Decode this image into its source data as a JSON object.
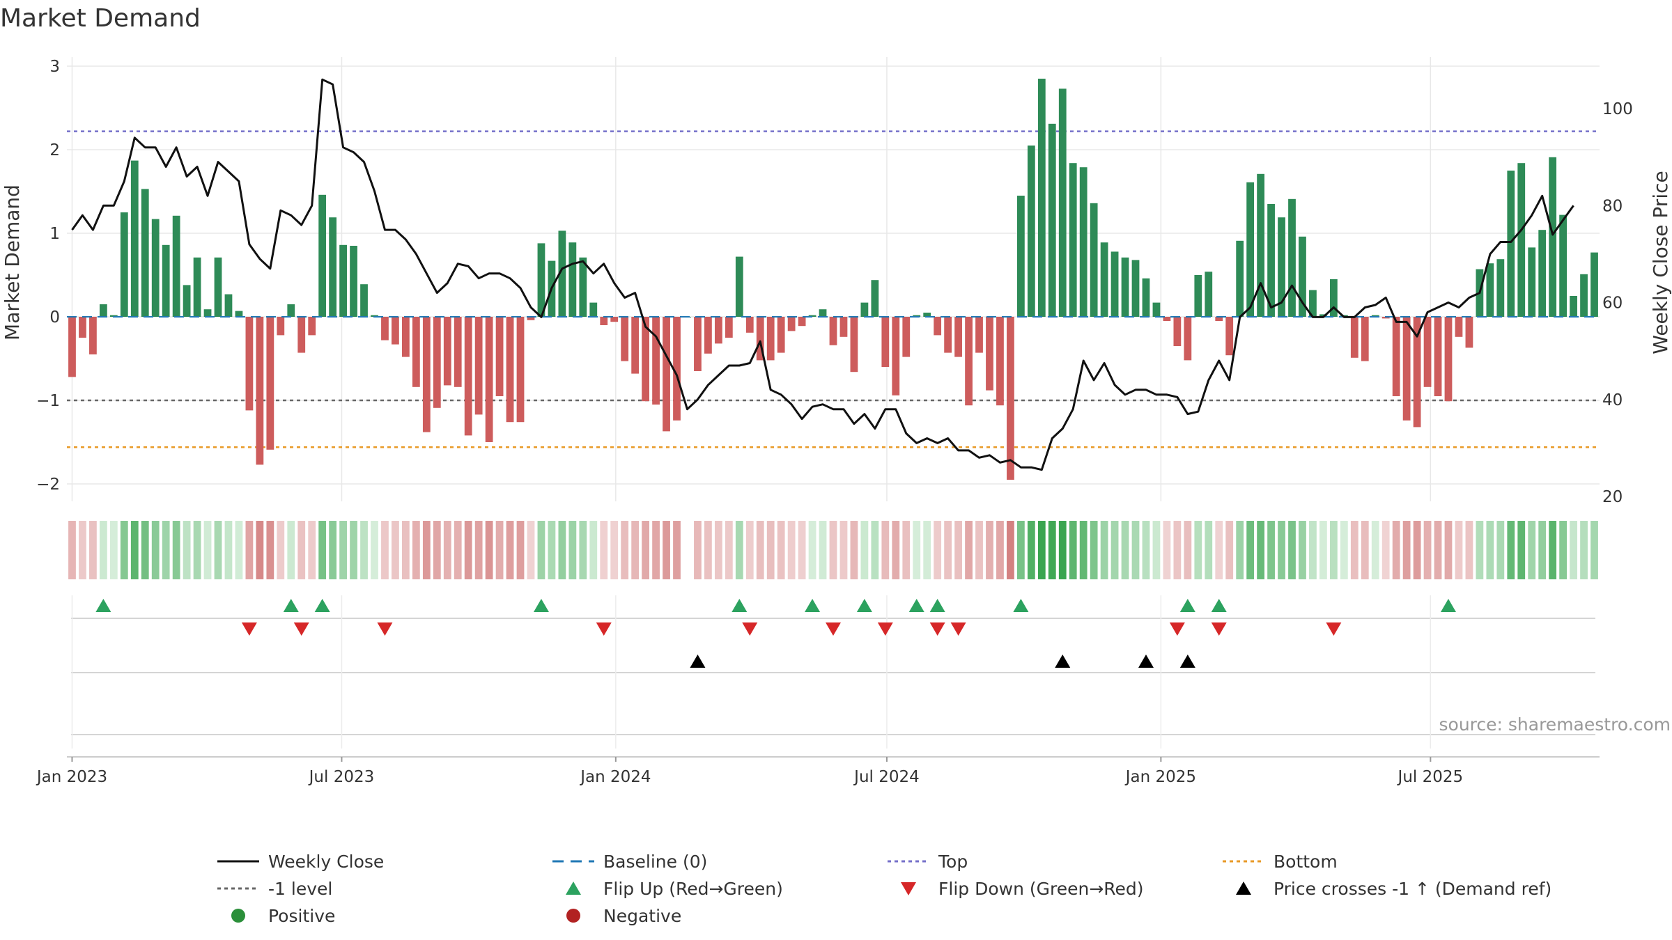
{
  "chart_data": {
    "type": "bar",
    "title": "Market Demand",
    "ylabel": "Market Demand",
    "y2label": "Weekly Close Price",
    "ylim": [
      -2.2,
      3.1
    ],
    "y2lim": [
      18,
      110
    ],
    "yticks": [
      "3",
      "2",
      "1",
      "0",
      "−1",
      "−2"
    ],
    "y2ticks": [
      "100",
      "80",
      "60",
      "40",
      "20"
    ],
    "xticks": [
      "Jan 2023",
      "Jul 2023",
      "Jan 2024",
      "Jul 2024",
      "Jan 2025",
      "Jul 2025"
    ],
    "levels": {
      "top": 2.22,
      "minus_one": -1.0,
      "bottom": -1.56
    },
    "start_week": "2023-01-01",
    "series": [
      {
        "name": "Weekly Close",
        "type": "line",
        "axis": "right",
        "values": [
          75,
          78,
          75,
          80,
          80,
          85,
          94,
          92,
          92,
          88,
          92,
          86,
          88,
          82,
          89,
          87,
          85,
          72,
          69,
          67,
          79,
          78,
          76,
          80,
          106,
          105,
          92,
          91,
          89,
          83,
          75,
          75,
          73,
          70,
          66,
          62,
          64,
          68,
          67.5,
          65,
          66,
          66,
          65,
          63,
          59,
          57,
          63,
          67,
          68,
          68.5,
          66,
          68,
          64,
          61,
          62,
          55,
          53,
          49,
          45,
          38,
          40,
          43,
          45,
          47,
          47,
          47.5,
          52,
          42,
          41,
          39,
          36,
          38.5,
          39,
          38,
          38,
          35,
          37,
          34,
          38,
          38,
          33,
          31,
          32,
          31,
          32,
          29.5,
          29.5,
          28,
          28.5,
          27,
          27.5,
          26,
          26,
          25.5,
          32,
          34,
          38,
          48,
          44,
          47.5,
          43,
          41,
          42,
          42,
          41,
          41,
          40.5,
          37,
          37.5,
          44,
          48,
          44,
          57,
          59,
          64,
          59,
          60,
          63.5,
          60,
          57,
          57,
          59,
          57,
          57,
          59,
          59.5,
          61,
          56,
          56,
          53,
          58,
          59,
          60,
          59,
          61,
          62,
          70,
          72.5,
          72.5,
          75,
          78,
          82,
          74,
          77,
          80
        ]
      },
      {
        "name": "Market Demand",
        "type": "bar",
        "axis": "left",
        "values": [
          -0.72,
          -0.25,
          -0.45,
          0.15,
          0.02,
          1.25,
          1.87,
          1.53,
          1.17,
          0.86,
          1.21,
          0.38,
          0.71,
          0.09,
          0.71,
          0.27,
          0.07,
          -1.12,
          -1.77,
          -1.59,
          -0.22,
          0.15,
          -0.43,
          -0.22,
          1.46,
          1.19,
          0.86,
          0.85,
          0.39,
          0.02,
          -0.28,
          -0.33,
          -0.48,
          -0.84,
          -1.38,
          -1.09,
          -0.82,
          -0.84,
          -1.42,
          -1.17,
          -1.5,
          -0.95,
          -1.26,
          -1.26,
          -0.04,
          0.88,
          0.67,
          1.03,
          0.89,
          0.71,
          0.17,
          -0.1,
          -0.06,
          -0.53,
          -0.68,
          -1.01,
          -1.05,
          -1.37,
          -1.24,
          0,
          -0.65,
          -0.44,
          -0.32,
          -0.25,
          0.72,
          -0.19,
          -0.52,
          -0.52,
          -0.43,
          -0.17,
          -0.11,
          0.02,
          0.09,
          -0.34,
          -0.24,
          -0.66,
          0.17,
          0.44,
          -0.6,
          -0.94,
          -0.48,
          0.02,
          0.05,
          -0.22,
          -0.43,
          -0.48,
          -1.06,
          -0.43,
          -0.88,
          -1.06,
          -1.95,
          1.45,
          2.05,
          2.85,
          2.31,
          2.73,
          1.84,
          1.79,
          1.36,
          0.89,
          0.78,
          0.71,
          0.68,
          0.46,
          0.17,
          -0.05,
          -0.35,
          -0.52,
          0.5,
          0.54,
          -0.05,
          -0.46,
          0.91,
          1.61,
          1.71,
          1.35,
          1.19,
          1.41,
          0.96,
          0.32,
          0.03,
          0.45,
          0.02,
          -0.49,
          -0.53,
          0.02,
          -0.02,
          -0.95,
          -1.24,
          -1.32,
          -0.84,
          -0.95,
          -1.01,
          -0.24,
          -0.37,
          0.57,
          0.64,
          0.69,
          1.75,
          1.84,
          0.83,
          1.04,
          1.91,
          1.22,
          0.25,
          0.51,
          0.77
        ]
      }
    ],
    "markers": {
      "flip_up": [
        3,
        21,
        24,
        45,
        64,
        71,
        76,
        81,
        83,
        91,
        107,
        110,
        132
      ],
      "flip_down": [
        17,
        22,
        30,
        51,
        65,
        73,
        78,
        83,
        85,
        106,
        110,
        121
      ],
      "price_crosses": [
        60,
        95,
        103,
        107
      ]
    },
    "legend": {
      "items": [
        {
          "label": "Weekly Close",
          "symbol": "line-solid",
          "color": "#111111"
        },
        {
          "label": "Baseline (0)",
          "symbol": "line-dash",
          "color": "#1f77b4"
        },
        {
          "label": "Top",
          "symbol": "line-dot",
          "color": "#7570c9"
        },
        {
          "label": "Bottom",
          "symbol": "line-dot",
          "color": "#e89a27"
        },
        {
          "label": "-1 level",
          "symbol": "line-dot",
          "color": "#666666"
        },
        {
          "label": "Flip Up (Red→Green)",
          "symbol": "triangle-up",
          "color": "#2ca25f"
        },
        {
          "label": "Flip Down (Green→Red)",
          "symbol": "triangle-down",
          "color": "#d62728"
        },
        {
          "label": "Price crosses -1 ↑ (Demand ref)",
          "symbol": "triangle-up",
          "color": "#000000"
        },
        {
          "label": "Positive",
          "symbol": "circle",
          "color": "#2b8f3a"
        },
        {
          "label": "Negative",
          "symbol": "circle",
          "color": "#b22222"
        }
      ],
      "placement": "bottom"
    },
    "source": "source: sharemaestro.com",
    "colors": {
      "positive": "#2e8b57",
      "negative": "#cd5c5c",
      "top": "#7570c9",
      "bottom": "#e89a27",
      "minus_one": "#666666",
      "baseline": "#1f77b4",
      "grid": "#e8e8e8"
    }
  }
}
